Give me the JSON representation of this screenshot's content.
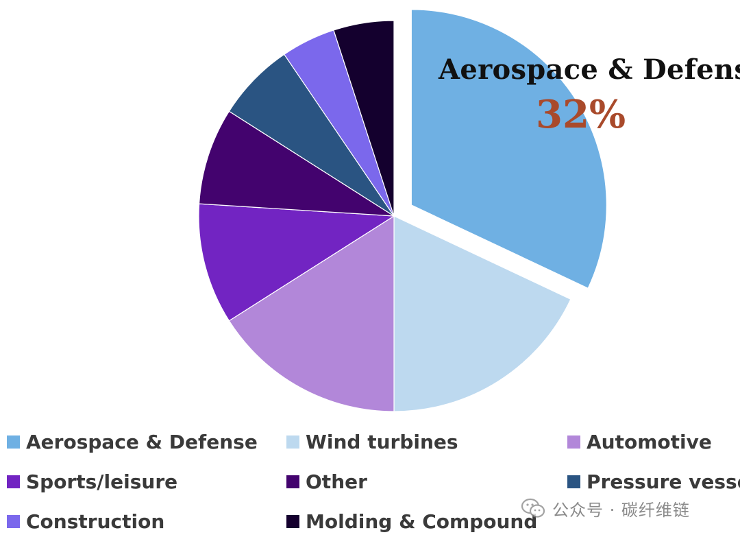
{
  "chart_data": {
    "type": "pie",
    "slices": [
      {
        "label": "Aerospace & Defense",
        "value": 32,
        "color": "#6fb0e3",
        "exploded": true
      },
      {
        "label": "Wind turbines",
        "value": 18,
        "color": "#bdd9ef"
      },
      {
        "label": "Automotive",
        "value": 16,
        "color": "#b287d9"
      },
      {
        "label": "Sports/leisure",
        "value": 10,
        "color": "#7224c2"
      },
      {
        "label": "Other",
        "value": 8,
        "color": "#43036e"
      },
      {
        "label": "Pressure vessel",
        "value": 6.5,
        "color": "#2a5482"
      },
      {
        "label": "Construction",
        "value": 4.5,
        "color": "#7b68ec"
      },
      {
        "label": "Molding & Compound",
        "value": 5,
        "color": "#14002e"
      }
    ],
    "start_angle_deg": 0,
    "direction": "clockwise",
    "callout": {
      "label": "Aerospace & Defense",
      "value": "32%",
      "value_color": "#a94a2b"
    },
    "legend_placement": "bottom"
  },
  "legend": {
    "items": [
      {
        "label": "Aerospace & Defense",
        "color": "#6fb0e3"
      },
      {
        "label": "Wind turbines",
        "color": "#bdd9ef"
      },
      {
        "label": "Automotive",
        "color": "#b287d9"
      },
      {
        "label": "Sports/leisure",
        "color": "#7224c2"
      },
      {
        "label": "Other",
        "color": "#43036e"
      },
      {
        "label": "Pressure vessel",
        "color": "#2a5482"
      },
      {
        "label": "Construction",
        "color": "#7b68ec"
      },
      {
        "label": "Molding & Compound",
        "color": "#14002e"
      }
    ]
  },
  "watermark": {
    "text": "公众号 · 碳纤维链",
    "icon": "wechat-icon"
  }
}
